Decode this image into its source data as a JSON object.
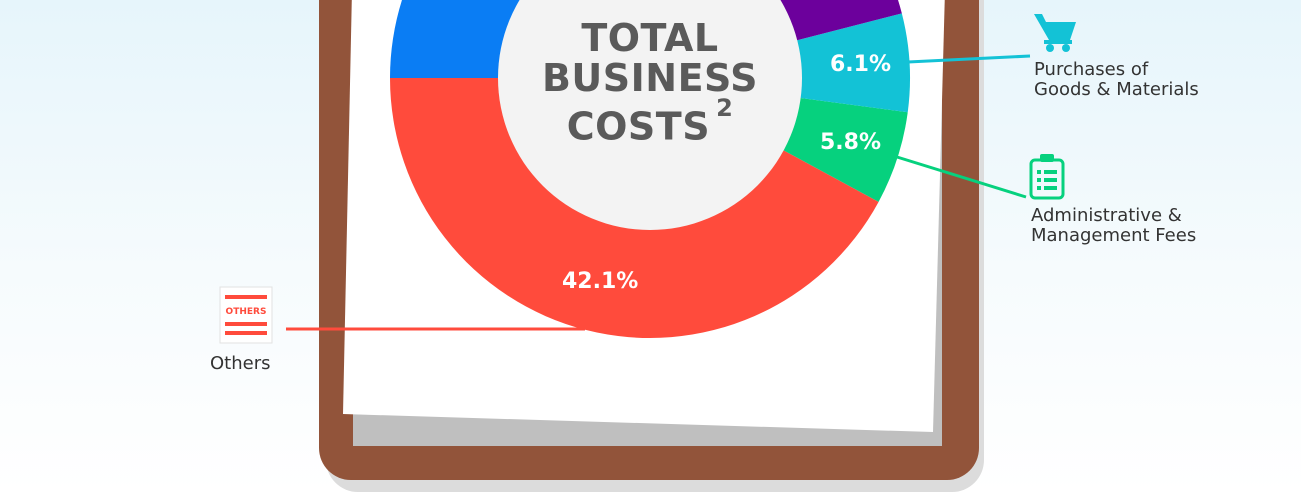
{
  "chart_data": {
    "type": "pie",
    "center_label": {
      "lines": [
        "TOTAL",
        "BUSINESS",
        "COSTS"
      ],
      "superscript": "2"
    },
    "slices": [
      {
        "label": "Others",
        "value": 42.1,
        "value_label": "42.1%",
        "color": "#ff4b3c",
        "icon": "others-receipt-icon"
      },
      {
        "label": "Administrative & Management Fees",
        "value": 5.8,
        "value_label": "5.8%",
        "color": "#06d17e",
        "icon": "clipboard-icon"
      },
      {
        "label": "Purchases of Goods & Materials",
        "value": 6.1,
        "value_label": "6.1%",
        "color": "#13c2d6",
        "icon": "shopping-cart-icon"
      }
    ],
    "partial_slice_colors": [
      "#6c009c",
      "#0a7df4"
    ]
  },
  "legend": {
    "purchases": {
      "line1": "Purchases of",
      "line2": "Goods & Materials"
    },
    "admin": {
      "line1": "Administrative &",
      "line2": "Management Fees"
    },
    "others": {
      "line1": "Others"
    },
    "others_icon_text": "OTHERS"
  },
  "colors": {
    "board": "#92543a",
    "paper": "#ffffff",
    "paper_shadow": "#bfbfbf",
    "inner_circle": "#f3f3f3"
  }
}
